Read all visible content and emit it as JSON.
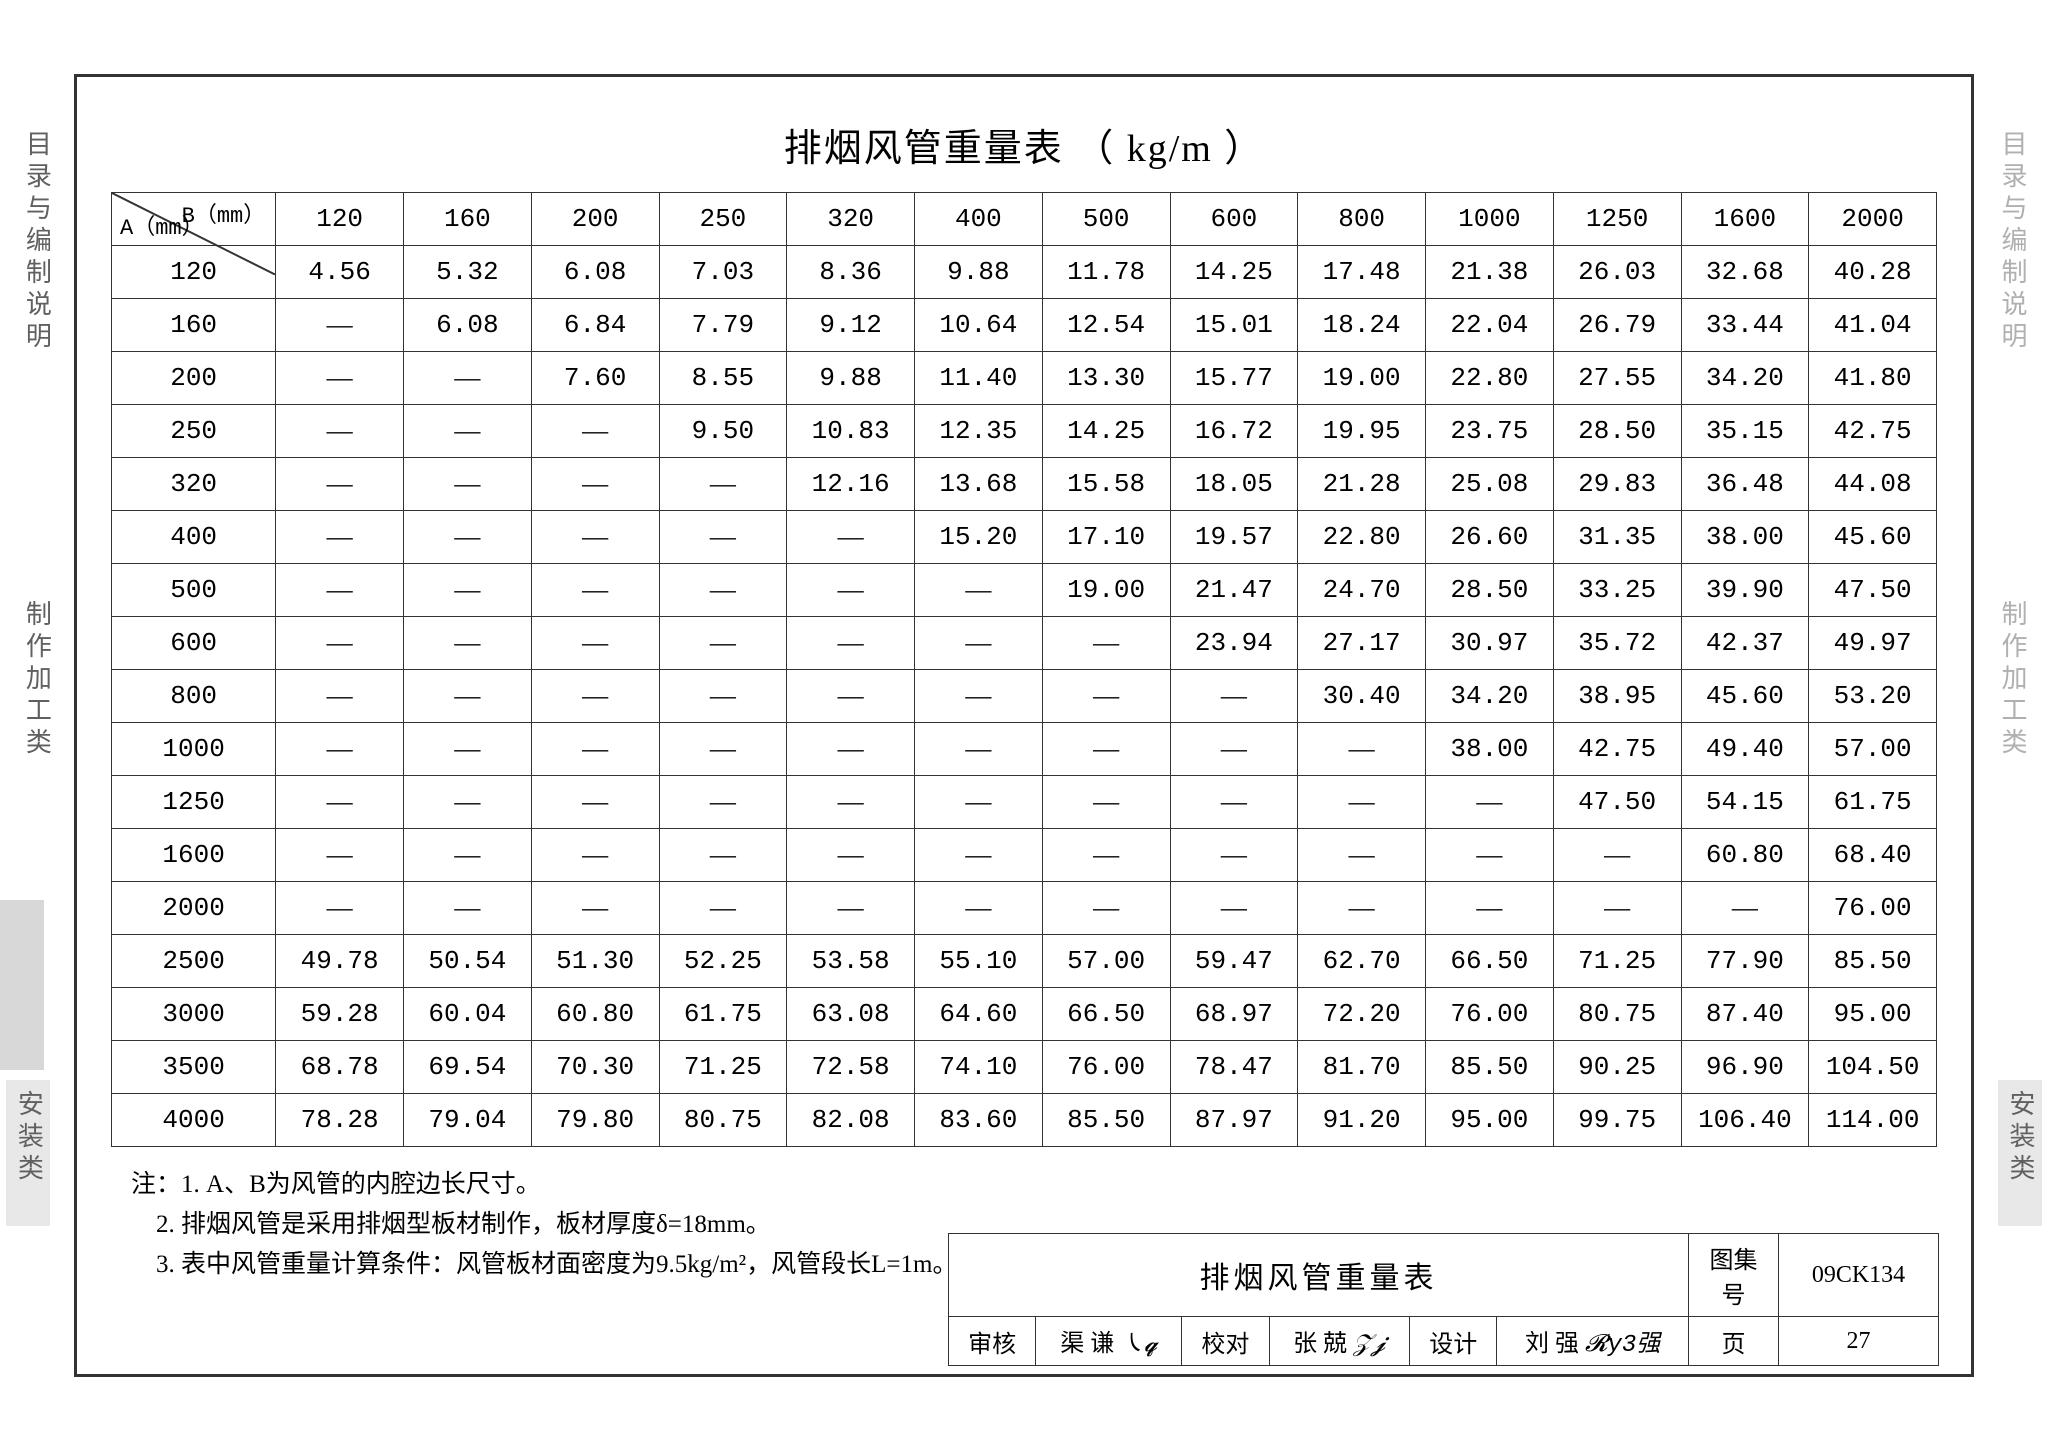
{
  "title": "排烟风管重量表 （ kg/m ）",
  "sideLabels": {
    "left1": "目录与编制说明",
    "left2": "制作加工类",
    "left3": "安装类",
    "right1": "目录与编制说明",
    "right2": "制作加工类",
    "right3": "安装类"
  },
  "table": {
    "diagTop": "B（mm）",
    "diagBottom": "A（mm）",
    "colHeaders": [
      "120",
      "160",
      "200",
      "250",
      "320",
      "400",
      "500",
      "600",
      "800",
      "1000",
      "1250",
      "1600",
      "2000"
    ],
    "rowHeaders": [
      "120",
      "160",
      "200",
      "250",
      "320",
      "400",
      "500",
      "600",
      "800",
      "1000",
      "1250",
      "1600",
      "2000",
      "2500",
      "3000",
      "3500",
      "4000"
    ],
    "rows": [
      [
        "4.56",
        "5.32",
        "6.08",
        "7.03",
        "8.36",
        "9.88",
        "11.78",
        "14.25",
        "17.48",
        "21.38",
        "26.03",
        "32.68",
        "40.28"
      ],
      [
        "—",
        "6.08",
        "6.84",
        "7.79",
        "9.12",
        "10.64",
        "12.54",
        "15.01",
        "18.24",
        "22.04",
        "26.79",
        "33.44",
        "41.04"
      ],
      [
        "—",
        "—",
        "7.60",
        "8.55",
        "9.88",
        "11.40",
        "13.30",
        "15.77",
        "19.00",
        "22.80",
        "27.55",
        "34.20",
        "41.80"
      ],
      [
        "—",
        "—",
        "—",
        "9.50",
        "10.83",
        "12.35",
        "14.25",
        "16.72",
        "19.95",
        "23.75",
        "28.50",
        "35.15",
        "42.75"
      ],
      [
        "—",
        "—",
        "—",
        "—",
        "12.16",
        "13.68",
        "15.58",
        "18.05",
        "21.28",
        "25.08",
        "29.83",
        "36.48",
        "44.08"
      ],
      [
        "—",
        "—",
        "—",
        "—",
        "—",
        "15.20",
        "17.10",
        "19.57",
        "22.80",
        "26.60",
        "31.35",
        "38.00",
        "45.60"
      ],
      [
        "—",
        "—",
        "—",
        "—",
        "—",
        "—",
        "19.00",
        "21.47",
        "24.70",
        "28.50",
        "33.25",
        "39.90",
        "47.50"
      ],
      [
        "—",
        "—",
        "—",
        "—",
        "—",
        "—",
        "—",
        "23.94",
        "27.17",
        "30.97",
        "35.72",
        "42.37",
        "49.97"
      ],
      [
        "—",
        "—",
        "—",
        "—",
        "—",
        "—",
        "—",
        "—",
        "30.40",
        "34.20",
        "38.95",
        "45.60",
        "53.20"
      ],
      [
        "—",
        "—",
        "—",
        "—",
        "—",
        "—",
        "—",
        "—",
        "—",
        "38.00",
        "42.75",
        "49.40",
        "57.00"
      ],
      [
        "—",
        "—",
        "—",
        "—",
        "—",
        "—",
        "—",
        "—",
        "—",
        "—",
        "47.50",
        "54.15",
        "61.75"
      ],
      [
        "—",
        "—",
        "—",
        "—",
        "—",
        "—",
        "—",
        "—",
        "—",
        "—",
        "—",
        "60.80",
        "68.40"
      ],
      [
        "—",
        "—",
        "—",
        "—",
        "—",
        "—",
        "—",
        "—",
        "—",
        "—",
        "—",
        "—",
        "76.00"
      ],
      [
        "49.78",
        "50.54",
        "51.30",
        "52.25",
        "53.58",
        "55.10",
        "57.00",
        "59.47",
        "62.70",
        "66.50",
        "71.25",
        "77.90",
        "85.50"
      ],
      [
        "59.28",
        "60.04",
        "60.80",
        "61.75",
        "63.08",
        "64.60",
        "66.50",
        "68.97",
        "72.20",
        "76.00",
        "80.75",
        "87.40",
        "95.00"
      ],
      [
        "68.78",
        "69.54",
        "70.30",
        "71.25",
        "72.58",
        "74.10",
        "76.00",
        "78.47",
        "81.70",
        "85.50",
        "90.25",
        "96.90",
        "104.50"
      ],
      [
        "78.28",
        "79.04",
        "79.80",
        "80.75",
        "82.08",
        "83.60",
        "85.50",
        "87.97",
        "91.20",
        "95.00",
        "99.75",
        "106.40",
        "114.00"
      ]
    ]
  },
  "notes": {
    "prefix": "注：",
    "items": [
      "1. A、B为风管的内腔边长尺寸。",
      "2. 排烟风管是采用排烟型板材制作，板材厚度δ=18mm。",
      "3. 表中风管重量计算条件：风管板材面密度为9.5kg/m²，风管段长L=1m。"
    ]
  },
  "titleblock": {
    "mainTitle": "排烟风管重量表",
    "labels": {
      "tujihaoLabel": "图集号",
      "tujihao": "09CK134",
      "shenheL": "审核",
      "shenhe": "渠 谦",
      "jiaoduiL": "校对",
      "jiaodui": "张 兢",
      "shejiL": "设计",
      "sheji": "刘 强",
      "yeL": "页",
      "ye": "27"
    }
  },
  "style": {
    "borderColor": "#333333",
    "textColor": "#222222",
    "bg": "#ffffff",
    "dashChar": "—"
  }
}
